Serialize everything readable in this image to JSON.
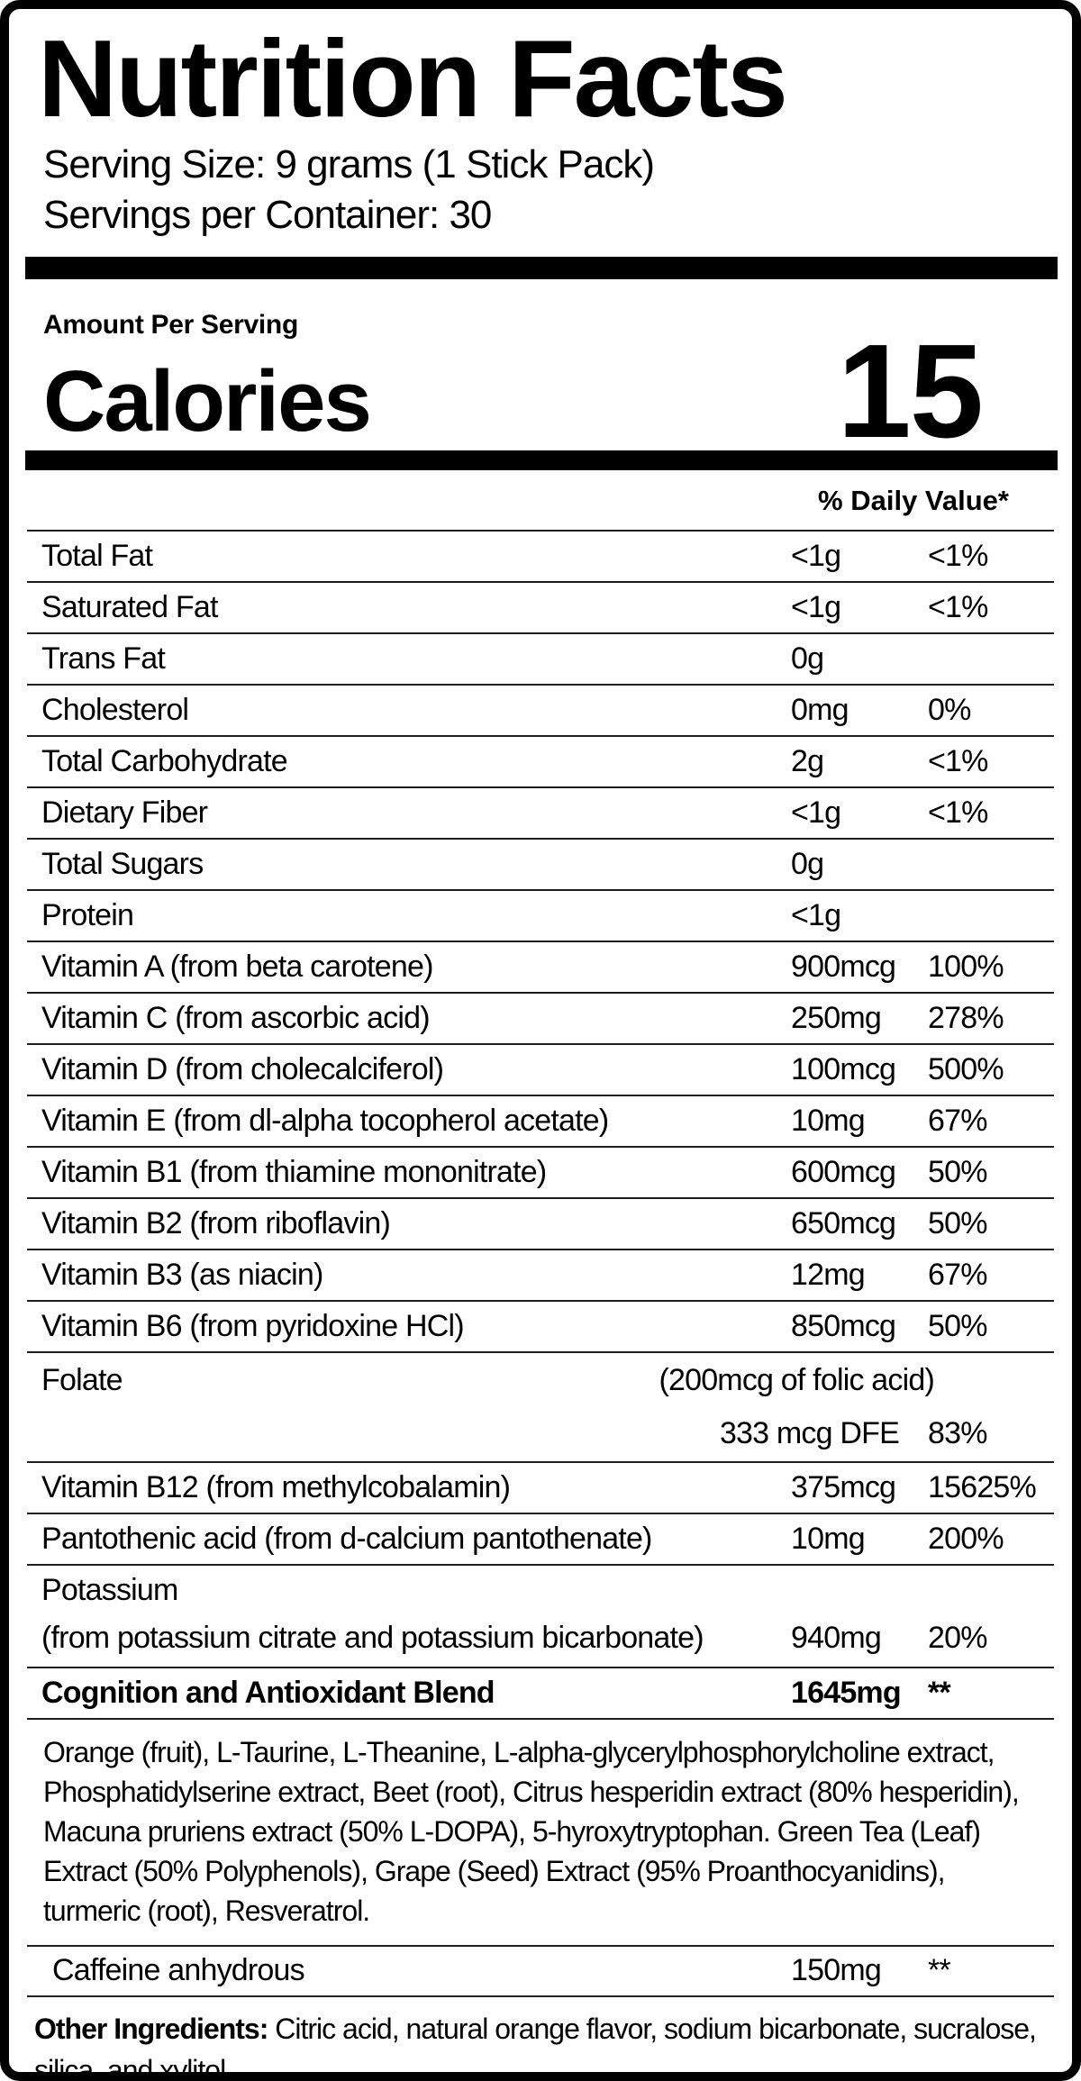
{
  "label": {
    "title": "Nutrition Facts",
    "serving_size": "Serving Size: 9 grams (1 Stick Pack)",
    "servings_per_container": "Servings per Container: 30",
    "amount_per_serving": "Amount Per Serving",
    "calories_label": "Calories",
    "calories_value": "15",
    "daily_value_header": "% Daily Value*",
    "rows": [
      {
        "name": "Total Fat",
        "amount": "<1g",
        "dv": "<1%"
      },
      {
        "name": "Saturated Fat",
        "amount": "<1g",
        "dv": "<1%"
      },
      {
        "name": "Trans Fat",
        "amount": "0g",
        "dv": ""
      },
      {
        "name": "Cholesterol",
        "amount": "0mg",
        "dv": "0%"
      },
      {
        "name": "Total Carbohydrate",
        "amount": "2g",
        "dv": "<1%"
      },
      {
        "name": "Dietary Fiber",
        "amount": "<1g",
        "dv": "<1%"
      },
      {
        "name": "Total Sugars",
        "amount": "0g",
        "dv": ""
      },
      {
        "name": "Protein",
        "amount": "<1g",
        "dv": ""
      },
      {
        "name": "Vitamin A (from beta carotene)",
        "amount": "900mcg",
        "dv": "100%"
      },
      {
        "name": "Vitamin C (from ascorbic acid)",
        "amount": "250mg",
        "dv": "278%"
      },
      {
        "name": "Vitamin D (from cholecalciferol)",
        "amount": "100mcg",
        "dv": "500%"
      },
      {
        "name": "Vitamin E (from dl-alpha tocopherol acetate)",
        "amount": "10mg",
        "dv": "67%"
      },
      {
        "name": "Vitamin B1 (from thiamine mononitrate)",
        "amount": "600mcg",
        "dv": "50%"
      },
      {
        "name": "Vitamin B2 (from riboflavin)",
        "amount": "650mcg",
        "dv": "50%"
      },
      {
        "name": "Vitamin B3 (as niacin)",
        "amount": "12mg",
        "dv": "67%"
      },
      {
        "name": "Vitamin B6 (from pyridoxine HCl)",
        "amount": "850mcg",
        "dv": "50%"
      },
      {
        "type": "folate",
        "name": "Folate",
        "note": "(200mcg of folic acid)",
        "amount": "333 mcg DFE",
        "dv": "83%"
      },
      {
        "name": "Vitamin B12 (from methylcobalamin)",
        "amount": "375mcg",
        "dv": "15625%"
      },
      {
        "name": "Pantothenic acid (from d-calcium pantothenate)",
        "amount": "10mg",
        "dv": "200%"
      },
      {
        "type": "twoline",
        "name": "Potassium",
        "name2": "(from potassium citrate and potassium bicarbonate)",
        "amount": "940mg",
        "dv": "20%"
      },
      {
        "type": "bold",
        "name": "Cognition and Antioxidant Blend",
        "amount": "1645mg",
        "dv": "**"
      },
      {
        "type": "paragraph",
        "text": "Orange (fruit), L-Taurine, L-Theanine, L-alpha-glycerylphosphorylcholine extract, Phosphatidylserine extract, Beet (root), Citrus hesperidin extract (80% hesperidin), Macuna pruriens extract (50% L-DOPA), 5-hyroxytryptophan. Green Tea (Leaf) Extract (50% Polyphenols), Grape (Seed) Extract (95% Proanthocyanidins), turmeric (root), Resveratrol."
      },
      {
        "type": "indent",
        "name": "Caffeine anhydrous",
        "amount": "150mg",
        "dv": "**"
      },
      {
        "type": "other",
        "bold_prefix": "Other Ingredients:",
        "text": " Citric acid, natural orange flavor, sodium bicarbonate, sucralose, silica, and xylitol."
      }
    ]
  }
}
